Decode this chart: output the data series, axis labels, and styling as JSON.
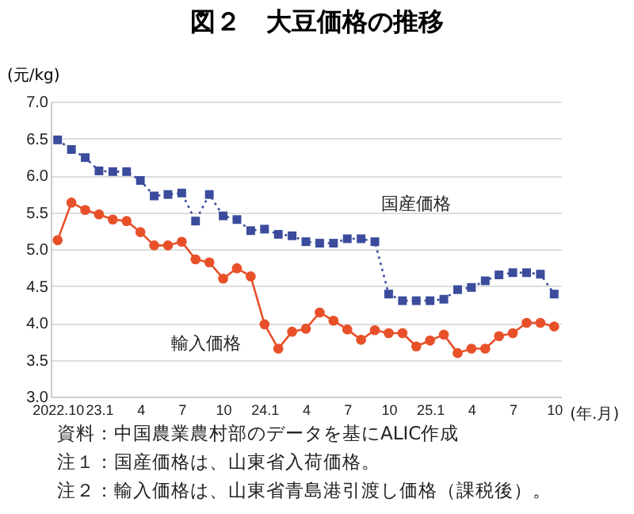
{
  "chart_data": {
    "type": "line",
    "title": "図２　大豆価格の推移",
    "ylabel": "(元/kg)",
    "xlabel": "(年.月)",
    "categories": [
      "2022.10",
      null,
      null,
      "23.1",
      null,
      null,
      "4",
      null,
      null,
      "7",
      null,
      null,
      "10",
      null,
      null,
      "24.1",
      null,
      null,
      "4",
      null,
      null,
      "7",
      null,
      null,
      "10",
      null,
      null,
      "25.1",
      null,
      null,
      "4",
      null,
      null,
      "7",
      null,
      null,
      "10"
    ],
    "series": [
      {
        "name": "国産価格",
        "color": "#3b4c9c",
        "marker": "square",
        "line_style": "dotted",
        "values": [
          6.48,
          6.35,
          6.24,
          6.06,
          6.05,
          6.05,
          5.93,
          5.72,
          5.74,
          5.76,
          5.38,
          5.74,
          5.45,
          5.4,
          5.25,
          5.27,
          5.2,
          5.18,
          5.1,
          5.08,
          5.08,
          5.14,
          5.14,
          5.1,
          4.39,
          4.3,
          4.3,
          4.3,
          4.32,
          4.45,
          4.48,
          4.57,
          4.65,
          4.68,
          4.68,
          4.66,
          4.39
        ]
      },
      {
        "name": "輸入価格",
        "color": "#e8502a",
        "marker": "circle",
        "line_style": "solid",
        "values": [
          5.12,
          5.63,
          5.53,
          5.47,
          5.4,
          5.38,
          5.23,
          5.05,
          5.05,
          5.1,
          4.86,
          4.82,
          4.6,
          4.74,
          4.63,
          3.98,
          3.65,
          3.88,
          3.92,
          4.14,
          4.03,
          3.91,
          3.77,
          3.9,
          3.86,
          3.86,
          3.68,
          3.76,
          3.84,
          3.59,
          3.65,
          3.65,
          3.82,
          3.86,
          4.0,
          4.0,
          3.95
        ]
      }
    ],
    "ylim": [
      3.0,
      7.0
    ],
    "yticks": [
      {
        "value": 3.0,
        "label": "3.0"
      },
      {
        "value": 3.5,
        "label": "3.5"
      },
      {
        "value": 4.0,
        "label": "4.0"
      },
      {
        "value": 4.5,
        "label": "4.5"
      },
      {
        "value": 5.0,
        "label": "5.0"
      },
      {
        "value": 5.5,
        "label": "5.5"
      },
      {
        "value": 6.0,
        "label": "6.0"
      },
      {
        "value": 6.5,
        "label": "6.5"
      },
      {
        "value": 7.0,
        "label": "7.0"
      }
    ],
    "grid": "y",
    "legend": false,
    "annotations": [
      "資料：中国農業農村部のデータを基にALIC作成",
      "注１：国産価格は、山東省入荷価格。",
      "注２：輸入価格は、山東省青島港引渡し価格（課税後）。"
    ]
  }
}
